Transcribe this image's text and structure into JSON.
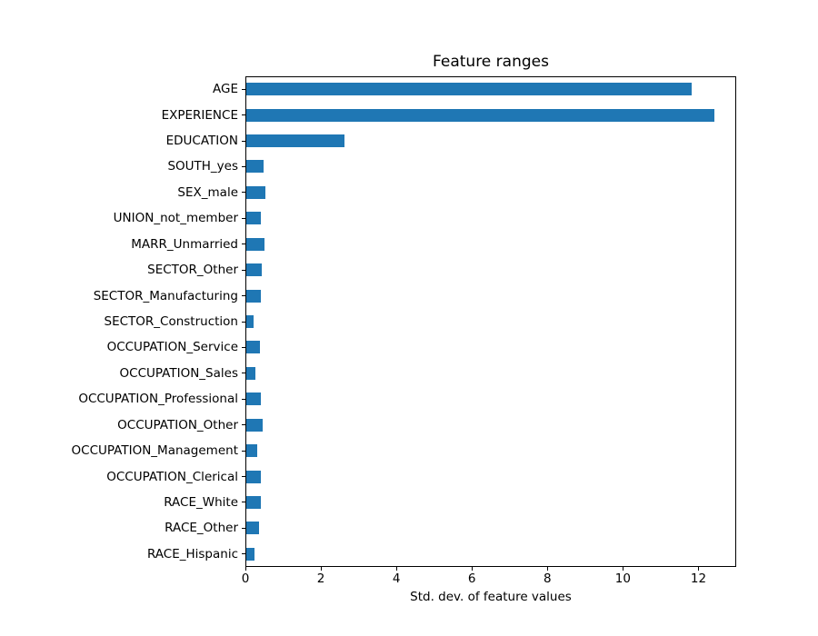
{
  "chart_data": {
    "type": "bar",
    "orientation": "horizontal",
    "title": "Feature ranges",
    "xlabel": "Std. dev. of feature values",
    "ylabel": "",
    "categories": [
      "AGE",
      "EXPERIENCE",
      "EDUCATION",
      "SOUTH_yes",
      "SEX_male",
      "UNION_not_member",
      "MARR_Unmarried",
      "SECTOR_Other",
      "SECTOR_Manufacturing",
      "SECTOR_Construction",
      "OCCUPATION_Service",
      "OCCUPATION_Sales",
      "OCCUPATION_Professional",
      "OCCUPATION_Other",
      "OCCUPATION_Management",
      "OCCUPATION_Clerical",
      "RACE_White",
      "RACE_Other",
      "RACE_Hispanic"
    ],
    "values": [
      11.8,
      12.4,
      2.6,
      0.45,
      0.5,
      0.38,
      0.48,
      0.42,
      0.39,
      0.2,
      0.36,
      0.25,
      0.39,
      0.44,
      0.3,
      0.39,
      0.38,
      0.33,
      0.22
    ],
    "xlim": [
      0,
      13
    ],
    "xticks": [
      0,
      2,
      4,
      6,
      8,
      10,
      12
    ],
    "bar_color": "#1f77b4",
    "spine_color": "#000000",
    "background_color": "#ffffff",
    "grid": false,
    "legend_position": "none",
    "bar_relative_height": 0.5
  }
}
